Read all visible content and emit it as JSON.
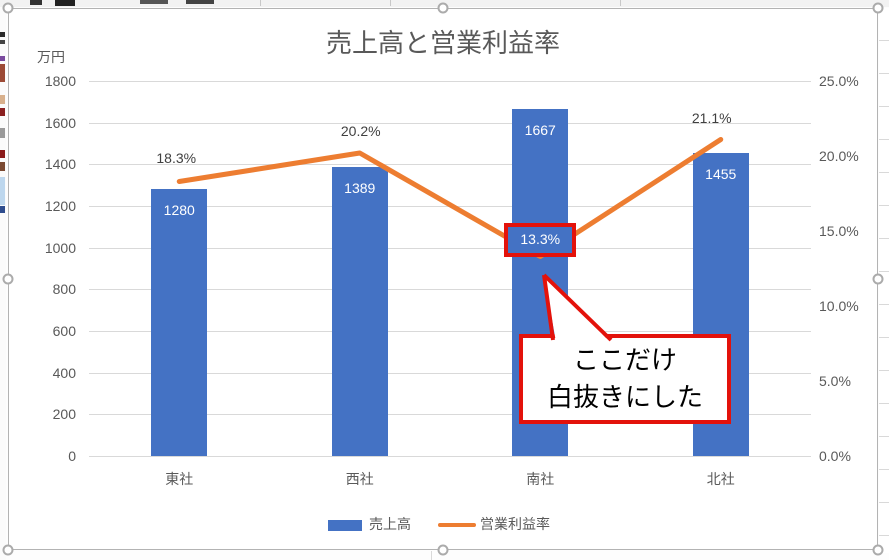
{
  "chart_data": {
    "type": "combo",
    "title": "売上高と営業利益率",
    "categories": [
      "東社",
      "西社",
      "南社",
      "北社"
    ],
    "series": [
      {
        "name": "売上高",
        "type": "bar",
        "values": [
          1280,
          1389,
          1667,
          1455
        ],
        "labels": [
          "1280",
          "1389",
          "1667",
          "1455"
        ],
        "color": "#4472C4"
      },
      {
        "name": "営業利益率",
        "type": "line",
        "values": [
          18.3,
          20.2,
          13.3,
          21.1
        ],
        "labels": [
          "18.3%",
          "20.2%",
          "13.3%",
          "21.1%"
        ],
        "color": "#ED7D31"
      }
    ],
    "left_axis": {
      "unit": "万円",
      "min": 0,
      "max": 1800,
      "step": 200,
      "ticks": [
        "1800",
        "1600",
        "1400",
        "1200",
        "1000",
        "800",
        "600",
        "400",
        "200",
        "0"
      ]
    },
    "right_axis": {
      "min": 0,
      "max": 25,
      "step": 5,
      "ticks": [
        "25.0%",
        "20.0%",
        "15.0%",
        "10.0%",
        "5.0%",
        "0.0%"
      ]
    },
    "legend": [
      "売上高",
      "営業利益率"
    ],
    "grid": true,
    "legend_position": "bottom"
  },
  "annotation": {
    "highlight_point": 2,
    "highlight_label": "13.3%",
    "callout_line1": "ここだけ",
    "callout_line2": "白抜きにした",
    "color": "#e3120b"
  }
}
